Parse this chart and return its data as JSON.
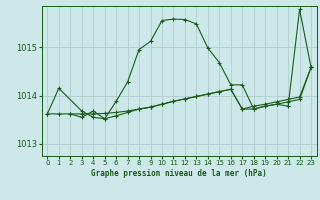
{
  "title": "Graphe pression niveau de la mer (hPa)",
  "bg_color": "#cce8e8",
  "grid_color": "#b0cccc",
  "line_color": "#1a5c1a",
  "ylim": [
    1012.75,
    1015.85
  ],
  "yticks": [
    1013,
    1014,
    1015
  ],
  "xlim": [
    -0.5,
    23.5
  ],
  "xticks": [
    0,
    1,
    2,
    3,
    4,
    5,
    6,
    7,
    8,
    9,
    10,
    11,
    12,
    13,
    14,
    15,
    16,
    17,
    18,
    19,
    20,
    21,
    22,
    23
  ],
  "series1_x": [
    0,
    1,
    3,
    4,
    5,
    6,
    7,
    8,
    9,
    10,
    11,
    12,
    13,
    14,
    15,
    16,
    17,
    18,
    19,
    20,
    21,
    22,
    23
  ],
  "series1_y": [
    1013.62,
    1014.15,
    1013.68,
    1013.55,
    1013.52,
    1013.88,
    1014.28,
    1014.95,
    1015.12,
    1015.55,
    1015.58,
    1015.57,
    1015.48,
    1014.98,
    1014.68,
    1014.22,
    1014.22,
    1013.72,
    1013.78,
    1013.82,
    1013.78,
    1015.78,
    1014.58
  ],
  "series2_x": [
    0,
    1,
    2,
    3,
    4,
    5,
    6,
    7,
    8,
    9,
    10,
    11,
    12,
    13,
    14,
    15,
    16,
    17,
    18,
    19,
    20,
    21,
    22,
    23
  ],
  "series2_y": [
    1013.62,
    1013.62,
    1013.62,
    1013.62,
    1013.62,
    1013.63,
    1013.65,
    1013.68,
    1013.72,
    1013.76,
    1013.82,
    1013.88,
    1013.93,
    1013.98,
    1014.03,
    1014.08,
    1014.13,
    1013.72,
    1013.78,
    1013.82,
    1013.87,
    1013.92,
    1013.97,
    1014.58
  ],
  "series3_x": [
    2,
    3,
    4,
    5,
    6,
    7,
    8,
    9,
    10,
    11,
    12,
    13,
    14,
    15,
    16,
    17,
    18,
    19,
    20,
    21,
    22,
    23
  ],
  "series3_y": [
    1013.62,
    1013.55,
    1013.68,
    1013.52,
    1013.58,
    1013.65,
    1013.72,
    1013.76,
    1013.82,
    1013.88,
    1013.93,
    1013.98,
    1014.03,
    1014.08,
    1014.13,
    1013.72,
    1013.72,
    1013.78,
    1013.82,
    1013.87,
    1013.92,
    1014.58
  ]
}
